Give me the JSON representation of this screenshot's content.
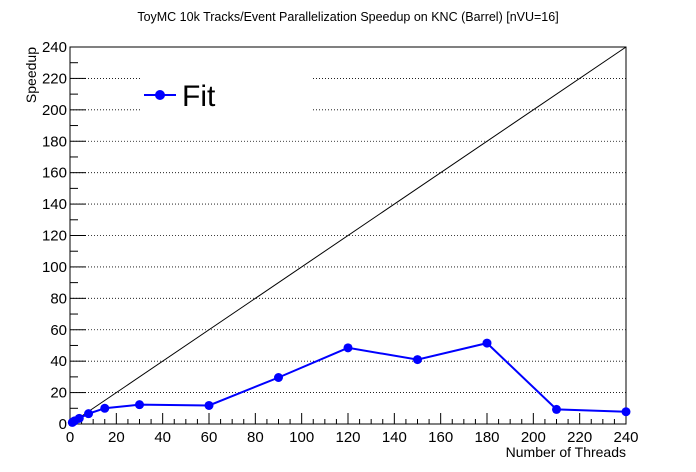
{
  "chart_data": {
    "type": "line",
    "title": "ToyMC 10k Tracks/Event Parallelization Speedup on KNC (Barrel) [nVU=16]",
    "xlabel": "Number of Threads",
    "ylabel": "Speedup",
    "xlim": [
      0,
      240
    ],
    "ylim": [
      0,
      240
    ],
    "xticks": [
      0,
      20,
      40,
      60,
      80,
      100,
      120,
      140,
      160,
      180,
      200,
      220,
      240
    ],
    "yticks": [
      0,
      20,
      40,
      60,
      80,
      100,
      120,
      140,
      160,
      180,
      200,
      220,
      240
    ],
    "grid": "horizontal dotted",
    "legend_position": "top-left",
    "series": [
      {
        "name": "Fit",
        "color": "#0000ff",
        "marker": "circle",
        "x": [
          1,
          2,
          4,
          8,
          15,
          30,
          60,
          90,
          120,
          150,
          180,
          210,
          240
        ],
        "y": [
          1.0,
          2.0,
          3.6,
          6.6,
          10.0,
          12.3,
          11.8,
          29.6,
          48.5,
          41.0,
          51.5,
          9.3,
          7.8
        ]
      }
    ],
    "reference_line": {
      "x": [
        0,
        240
      ],
      "y": [
        0,
        240
      ],
      "color": "#000000"
    }
  }
}
